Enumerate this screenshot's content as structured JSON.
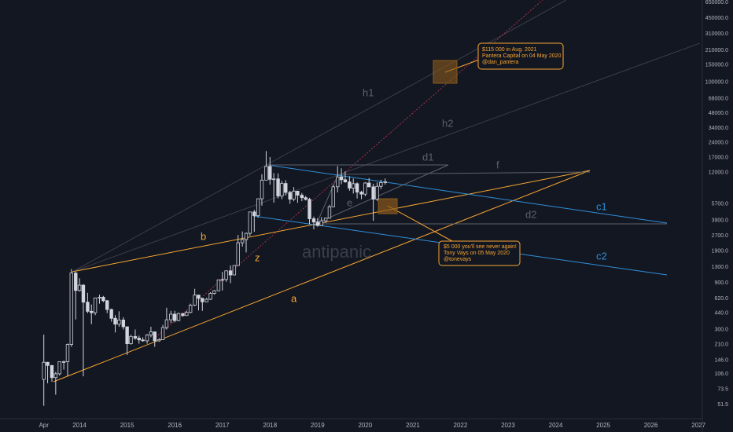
{
  "chart_data": {
    "type": "candlestick",
    "log_scale": true,
    "up_color": "#131722",
    "down_color": "#d1d4dc",
    "wick_color": "#d1d4dc",
    "x": [
      2013.25,
      2013.33,
      2013.42,
      2013.5,
      2013.58,
      2013.67,
      2013.75,
      2013.83,
      2013.92,
      2014,
      2014.08,
      2014.17,
      2014.25,
      2014.33,
      2014.42,
      2014.5,
      2014.58,
      2014.67,
      2014.75,
      2014.83,
      2014.92,
      2015,
      2015.08,
      2015.17,
      2015.25,
      2015.33,
      2015.42,
      2015.5,
      2015.58,
      2015.67,
      2015.75,
      2015.83,
      2015.92,
      2016,
      2016.08,
      2016.17,
      2016.25,
      2016.33,
      2016.42,
      2016.5,
      2016.58,
      2016.67,
      2016.75,
      2016.83,
      2016.92,
      2017,
      2017.08,
      2017.17,
      2017.25,
      2017.33,
      2017.42,
      2017.5,
      2017.58,
      2017.67,
      2017.75,
      2017.83,
      2017.92,
      2018,
      2018.08,
      2018.17,
      2018.25,
      2018.33,
      2018.42,
      2018.5,
      2018.58,
      2018.67,
      2018.75,
      2018.83,
      2018.92,
      2019,
      2019.08,
      2019.17,
      2019.25,
      2019.33,
      2019.42,
      2019.5,
      2019.58,
      2019.67,
      2019.75,
      2019.83,
      2019.92,
      2020,
      2020.08,
      2020.17,
      2020.25,
      2020.33,
      2020.42
    ],
    "open": [
      93,
      139,
      129,
      97,
      106,
      141,
      141,
      211,
      1130,
      750,
      850,
      570,
      460,
      445,
      630,
      640,
      590,
      480,
      390,
      340,
      375,
      320,
      215,
      255,
      245,
      235,
      230,
      264,
      284,
      230,
      236,
      314,
      377,
      430,
      370,
      437,
      416,
      448,
      531,
      673,
      624,
      575,
      610,
      700,
      745,
      963,
      970,
      1190,
      1080,
      1350,
      2300,
      2480,
      2870,
      4740,
      4340,
      6460,
      10000,
      13800,
      10200,
      10300,
      6900,
      9250,
      7500,
      6400,
      7730,
      7030,
      6630,
      6370,
      4040,
      3740,
      3450,
      3850,
      4100,
      5350,
      8550,
      10800,
      10100,
      9600,
      8300,
      9200,
      7550,
      7200,
      9350,
      8550,
      6400,
      8650,
      9450
    ],
    "high": [
      266,
      140,
      130,
      111,
      130,
      145,
      216,
      1240,
      1160,
      1000,
      870,
      710,
      540,
      630,
      680,
      660,
      600,
      490,
      420,
      460,
      400,
      320,
      265,
      300,
      260,
      250,
      270,
      320,
      285,
      245,
      335,
      500,
      465,
      465,
      445,
      440,
      465,
      550,
      780,
      680,
      630,
      630,
      720,
      760,
      970,
      1160,
      1200,
      1350,
      1350,
      2760,
      3000,
      2920,
      4750,
      4980,
      6470,
      11500,
      19800,
      17200,
      11800,
      11700,
      9800,
      10000,
      7800,
      8500,
      7760,
      7400,
      6900,
      6600,
      4250,
      4100,
      4200,
      4150,
      5600,
      9000,
      13900,
      13200,
      12300,
      10950,
      10400,
      9500,
      7800,
      9550,
      10500,
      9200,
      9500,
      10100,
      10400
    ],
    "low": [
      50,
      85,
      88,
      65,
      102,
      117,
      100,
      200,
      380,
      730,
      100,
      440,
      340,
      420,
      550,
      570,
      440,
      360,
      280,
      320,
      300,
      165,
      210,
      235,
      215,
      225,
      215,
      250,
      200,
      225,
      235,
      300,
      350,
      355,
      365,
      405,
      415,
      440,
      520,
      470,
      465,
      570,
      600,
      680,
      740,
      750,
      920,
      890,
      1080,
      1350,
      2100,
      1830,
      2700,
      2970,
      4140,
      5500,
      10000,
      9000,
      5900,
      6500,
      6400,
      7000,
      5750,
      6100,
      5880,
      6100,
      6200,
      3550,
      3150,
      3350,
      3400,
      3680,
      4050,
      5350,
      7500,
      9100,
      9400,
      7800,
      7300,
      6500,
      6400,
      6850,
      8450,
      3850,
      6150,
      8100,
      9000
    ],
    "close": [
      139,
      129,
      97,
      106,
      141,
      141,
      211,
      1130,
      750,
      850,
      570,
      460,
      445,
      630,
      640,
      590,
      480,
      390,
      340,
      375,
      320,
      215,
      255,
      245,
      235,
      230,
      264,
      284,
      230,
      236,
      314,
      377,
      430,
      370,
      437,
      416,
      448,
      531,
      673,
      624,
      575,
      610,
      700,
      745,
      963,
      970,
      1190,
      1080,
      1350,
      2300,
      2480,
      2870,
      4740,
      4340,
      6460,
      10000,
      13800,
      10200,
      10300,
      6900,
      9250,
      7500,
      6400,
      7730,
      7030,
      6630,
      6370,
      4040,
      3740,
      3450,
      3850,
      4100,
      5350,
      8550,
      10800,
      10100,
      9600,
      8300,
      9200,
      7550,
      7200,
      9350,
      8550,
      6400,
      8650,
      9450,
      9600
    ],
    "xlim": [
      2012.33,
      2027.08
    ],
    "xticks": [
      {
        "value": 2013.25,
        "label": "Apr"
      },
      2014,
      2015,
      2016,
      2017,
      2018,
      2019,
      2020,
      2021,
      2022,
      2023,
      2024,
      2025,
      2026,
      2027
    ],
    "ylim": [
      37,
      687000
    ],
    "yticks": [
      51.5,
      73.5,
      {
        "value": 106,
        "label": "106.0"
      },
      {
        "value": 146,
        "label": "146.0"
      },
      {
        "value": 210,
        "label": "210.0"
      },
      {
        "value": 300,
        "label": "300.0"
      },
      {
        "value": 440,
        "label": "440.0"
      },
      {
        "value": 620,
        "label": "620.0"
      },
      {
        "value": 900,
        "label": "900.0"
      },
      {
        "value": 1300,
        "label": "1300.0"
      },
      {
        "value": 1900,
        "label": "1900.0"
      },
      {
        "value": 2700,
        "label": "2700.0"
      },
      {
        "value": 3900,
        "label": "3900.0"
      },
      {
        "value": 5700,
        "label": "5700.0"
      },
      {
        "value": 12000,
        "label": "12000.0"
      },
      {
        "value": 17000,
        "label": "17000.0"
      },
      {
        "value": 24000,
        "label": "24000.0"
      },
      {
        "value": 34000,
        "label": "34000.0"
      },
      {
        "value": 48000,
        "label": "48000.0"
      },
      {
        "value": 68000,
        "label": "68000.0"
      },
      {
        "value": 100000,
        "label": "100000.0"
      },
      {
        "value": 150000,
        "label": "150000.0"
      },
      {
        "value": 210000,
        "label": "210000.0"
      },
      {
        "value": 310000,
        "label": "310000.0"
      },
      {
        "value": 450000,
        "label": "450000.0"
      },
      {
        "value": 650000,
        "label": "650000.0"
      }
    ],
    "watermark": "antipanic",
    "drawing_labels": [
      "a",
      "b",
      "z",
      "h1",
      "h2",
      "c1",
      "c2",
      "d1",
      "d2",
      "e",
      "f"
    ],
    "annotations": [
      [
        "$115 000 in Aug. 2021",
        "Pantera Capital on 04 May 2020",
        "@dan_pantera"
      ],
      [
        "$5 000 you'll see never again!",
        "Tony Vays on 05 May 2020",
        "@tonevays"
      ]
    ]
  }
}
